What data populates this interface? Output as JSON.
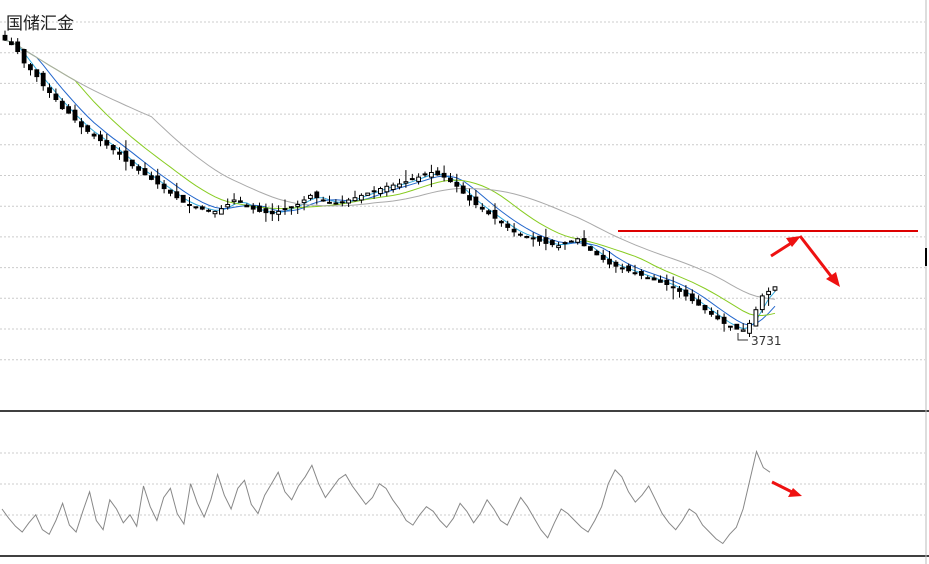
{
  "brand": {
    "watermark": "国储汇金"
  },
  "colors": {
    "background": "#ffffff",
    "candle": "#000000",
    "ma_fast": "#33aadd",
    "ma_mid": "#2266cc",
    "ma_slow": "#88cc22",
    "ma_long": "#aaaaaa",
    "resistance": "#dd0000",
    "arrow": "#ee1111",
    "indicator": "#888888",
    "gridline": "#cccccc",
    "frame": "#000000"
  },
  "chart_data": {
    "type": "candlestick",
    "title": "",
    "xlabel": "",
    "ylabel": "",
    "y_axis_labels": false,
    "grid": "horizontal-dotted",
    "annotations": {
      "low_label": "3731",
      "resistance_line": "horizontal-red",
      "arrows": [
        "up-right",
        "down-right",
        "down-right-indicator"
      ]
    },
    "price_series": [
      5000,
      4980,
      4950,
      4900,
      4870,
      4840,
      4800,
      4770,
      4740,
      4700,
      4680,
      4650,
      4620,
      4600,
      4580,
      4560,
      4540,
      4520,
      4500,
      4470,
      4450,
      4430,
      4410,
      4390,
      4370,
      4350,
      4330,
      4310,
      4290,
      4280,
      4270,
      4260,
      4255,
      4250,
      4262,
      4280,
      4300,
      4290,
      4270,
      4260,
      4250,
      4245,
      4240,
      4250,
      4260,
      4270,
      4280,
      4300,
      4320,
      4310,
      4300,
      4290,
      4285,
      4290,
      4300,
      4310,
      4320,
      4330,
      4340,
      4350,
      4360,
      4365,
      4370,
      4380,
      4390,
      4400,
      4410,
      4420,
      4410,
      4400,
      4380,
      4360,
      4330,
      4300,
      4280,
      4260,
      4240,
      4220,
      4200,
      4180,
      4160,
      4150,
      4140,
      4130,
      4120,
      4110,
      4105,
      4100,
      4110,
      4120,
      4130,
      4100,
      4080,
      4060,
      4040,
      4020,
      4010,
      4000,
      3990,
      3980,
      3970,
      3960,
      3950,
      3940,
      3930,
      3920,
      3900,
      3880,
      3860,
      3840,
      3820,
      3800,
      3780,
      3760,
      3745,
      3735,
      3731,
      3760,
      3820,
      3880,
      3900,
      3920
    ],
    "indicator_series": [
      40,
      32,
      25,
      20,
      28,
      35,
      22,
      18,
      30,
      45,
      26,
      20,
      38,
      55,
      30,
      22,
      48,
      40,
      28,
      35,
      25,
      60,
      42,
      30,
      50,
      58,
      36,
      27,
      62,
      45,
      33,
      48,
      70,
      52,
      40,
      58,
      65,
      44,
      36,
      52,
      62,
      72,
      55,
      48,
      60,
      68,
      78,
      62,
      50,
      58,
      66,
      70,
      60,
      52,
      44,
      50,
      62,
      58,
      48,
      40,
      30,
      26,
      35,
      42,
      38,
      30,
      24,
      32,
      45,
      38,
      28,
      36,
      48,
      40,
      30,
      26,
      38,
      50,
      42,
      32,
      22,
      15,
      28,
      40,
      36,
      30,
      24,
      20,
      30,
      42,
      62,
      74,
      68,
      55,
      46,
      52,
      60,
      48,
      36,
      28,
      22,
      30,
      40,
      36,
      26,
      20,
      14,
      10,
      18,
      24,
      40,
      65,
      90,
      76,
      72
    ]
  }
}
